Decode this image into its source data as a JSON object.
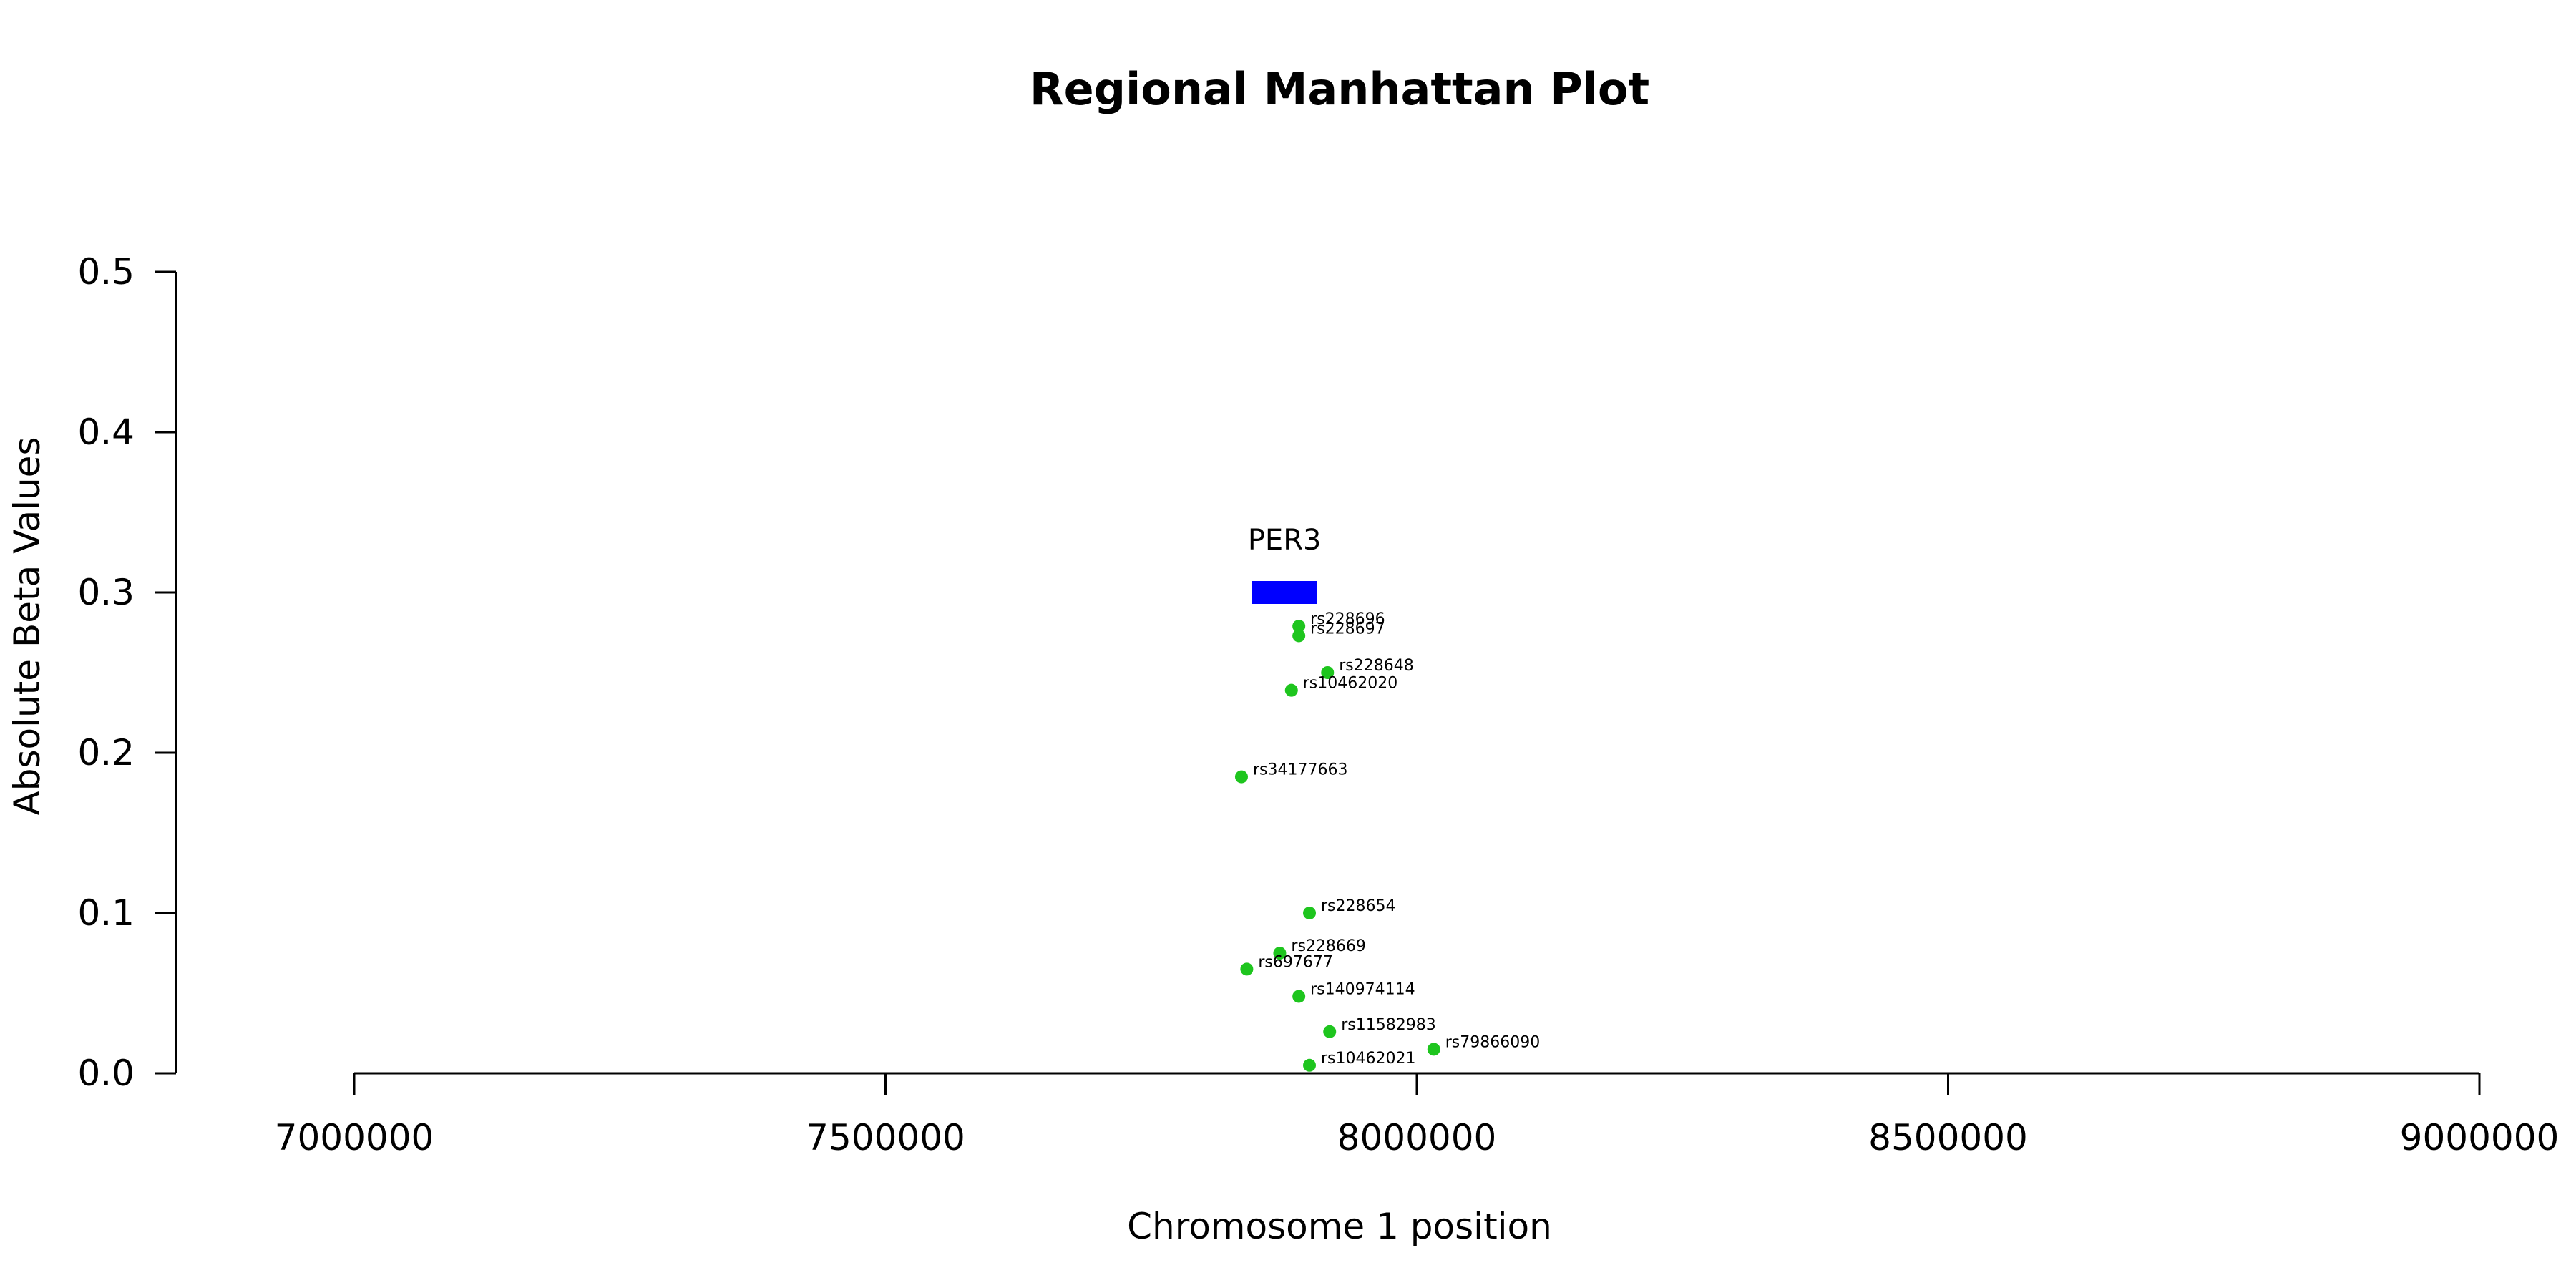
{
  "chart_data": {
    "type": "scatter",
    "title": "Regional Manhattan Plot",
    "xlabel": "Chromosome 1 position",
    "ylabel": "Absolute Beta Values",
    "xlim": [
      7000000,
      9000000
    ],
    "ylim": [
      0,
      0.5
    ],
    "x_ticks": [
      7000000,
      7500000,
      8000000,
      8500000,
      9000000
    ],
    "x_tick_labels": [
      "7000000",
      "7500000",
      "8000000",
      "8500000",
      "9000000"
    ],
    "y_ticks": [
      0,
      0.1,
      0.2,
      0.3,
      0.4,
      0.5
    ],
    "y_tick_labels": [
      "0.0",
      "0.1",
      "0.2",
      "0.3",
      "0.4",
      "0.5"
    ],
    "grid": false,
    "point_color": "#1ec51e",
    "gene_color": "#0000ff",
    "genes": [
      {
        "name": "PER3",
        "start": 7845000,
        "end": 7906000,
        "y": 0.3
      }
    ],
    "series": [
      {
        "points": [
          {
            "label": "rs228696",
            "x": 7889000,
            "y": 0.279
          },
          {
            "label": "rs228697",
            "x": 7889000,
            "y": 0.273
          },
          {
            "label": "rs228648",
            "x": 7916000,
            "y": 0.25
          },
          {
            "label": "rs10462020",
            "x": 7882000,
            "y": 0.239
          },
          {
            "label": "rs34177663",
            "x": 7835000,
            "y": 0.185
          },
          {
            "label": "rs228654",
            "x": 7899000,
            "y": 0.1
          },
          {
            "label": "rs228669",
            "x": 7871000,
            "y": 0.075
          },
          {
            "label": "rs697677",
            "x": 7840000,
            "y": 0.065
          },
          {
            "label": "rs140974114",
            "x": 7889000,
            "y": 0.048
          },
          {
            "label": "rs11582983",
            "x": 7918000,
            "y": 0.026
          },
          {
            "label": "rs79866090",
            "x": 8016000,
            "y": 0.015
          },
          {
            "label": "rs10462021",
            "x": 7899000,
            "y": 0.005
          }
        ]
      }
    ]
  }
}
